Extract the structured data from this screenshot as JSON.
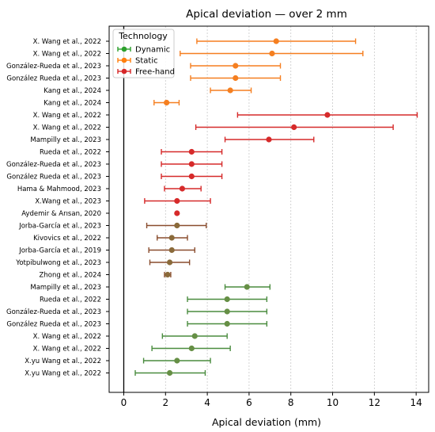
{
  "chart_data": {
    "type": "scatter",
    "title": "Apical deviation — over 2 mm",
    "xlabel": "Apical deviation (mm)",
    "ylabel": "",
    "xlim": [
      -0.7,
      14.6
    ],
    "xticks": [
      0,
      2,
      4,
      6,
      8,
      10,
      12,
      14
    ],
    "grid": "vertical dotted",
    "reference_line_x": 0,
    "legend": {
      "title": "Technology",
      "placement": "top-left",
      "entries": [
        {
          "name": "Dynamic",
          "color": "#2ca02c"
        },
        {
          "name": "Static",
          "color": "#ff7f0e"
        },
        {
          "name": "Free-hand",
          "color": "#d62728"
        }
      ]
    },
    "rows": [
      {
        "label": "X. Wang et al., 2022",
        "group": "Static",
        "mean": 7.3,
        "low": 3.5,
        "high": 11.1
      },
      {
        "label": "X. Wang et al., 2022",
        "group": "Static",
        "mean": 7.1,
        "low": 2.7,
        "high": 11.45
      },
      {
        "label": "González-Rueda et al., 2023",
        "group": "Static",
        "mean": 5.35,
        "low": 3.2,
        "high": 7.5
      },
      {
        "label": "González Rueda et al., 2023",
        "group": "Static",
        "mean": 5.35,
        "low": 3.2,
        "high": 7.5
      },
      {
        "label": "Kang et al., 2024",
        "group": "Static",
        "mean": 5.1,
        "low": 4.15,
        "high": 6.1
      },
      {
        "label": "Kang et al., 2024",
        "group": "Static",
        "mean": 2.05,
        "low": 1.45,
        "high": 2.65
      },
      {
        "label": "X. Wang et al., 2022",
        "group": "Free-hand",
        "mean": 9.75,
        "low": 5.45,
        "high": 14.05
      },
      {
        "label": "X. Wang et al., 2022",
        "group": "Free-hand",
        "mean": 8.15,
        "low": 3.45,
        "high": 12.9
      },
      {
        "label": "Mampilly et al., 2023",
        "group": "Free-hand",
        "mean": 6.95,
        "low": 4.85,
        "high": 9.1
      },
      {
        "label": "Rueda et al., 2022",
        "group": "Free-hand",
        "mean": 3.25,
        "low": 1.8,
        "high": 4.7
      },
      {
        "label": "González-Rueda et al., 2023",
        "group": "Free-hand",
        "mean": 3.25,
        "low": 1.8,
        "high": 4.7
      },
      {
        "label": "González Rueda et al., 2023",
        "group": "Free-hand",
        "mean": 3.25,
        "low": 1.8,
        "high": 4.7
      },
      {
        "label": "Hama & Mahmood, 2023",
        "group": "Free-hand",
        "mean": 2.8,
        "low": 1.95,
        "high": 3.7
      },
      {
        "label": "X.Wang et al., 2023",
        "group": "Free-hand",
        "mean": 2.55,
        "low": 1.0,
        "high": 4.15
      },
      {
        "label": "Aydemir & Arısan, 2020",
        "group": "Free-hand",
        "mean": 2.55,
        "low": 2.55,
        "high": 2.55
      },
      {
        "label": "Jorba-García et al., 2023",
        "group": "Free-hand/Dynamic",
        "mean": 2.55,
        "low": 1.1,
        "high": 3.95
      },
      {
        "label": "Kivovics et al., 2022",
        "group": "Free-hand/Dynamic",
        "mean": 2.3,
        "low": 1.6,
        "high": 3.05
      },
      {
        "label": "Jorba-García et al., 2019",
        "group": "Free-hand/Dynamic",
        "mean": 2.3,
        "low": 1.2,
        "high": 3.4
      },
      {
        "label": "Yotpibulwong et al., 2023",
        "group": "Free-hand/Dynamic",
        "mean": 2.2,
        "low": 1.25,
        "high": 3.15
      },
      {
        "label": "Zhong et al., 2024",
        "group": "Free-hand/Dynamic",
        "mean": 2.1,
        "low": 1.95,
        "high": 2.25
      },
      {
        "label": "Mampilly et al., 2023",
        "group": "Dynamic",
        "mean": 5.9,
        "low": 4.85,
        "high": 7.0
      },
      {
        "label": "Rueda et al., 2022",
        "group": "Dynamic",
        "mean": 4.95,
        "low": 3.05,
        "high": 6.85
      },
      {
        "label": "González-Rueda et al., 2023",
        "group": "Dynamic",
        "mean": 4.95,
        "low": 3.05,
        "high": 6.85
      },
      {
        "label": "González Rueda et al., 2023",
        "group": "Dynamic",
        "mean": 4.95,
        "low": 3.05,
        "high": 6.85
      },
      {
        "label": "X. Wang et al., 2022",
        "group": "Dynamic",
        "mean": 3.4,
        "low": 1.85,
        "high": 4.95
      },
      {
        "label": "X. Wang et al., 2022",
        "group": "Dynamic",
        "mean": 3.25,
        "low": 1.35,
        "high": 5.1
      },
      {
        "label": "X.yu Wang et al., 2022",
        "group": "Dynamic",
        "mean": 2.55,
        "low": 0.95,
        "high": 4.15
      },
      {
        "label": "X.yu Wang et al., 2022",
        "group": "Dynamic",
        "mean": 2.2,
        "low": 0.55,
        "high": 3.9
      }
    ]
  },
  "colors": {
    "Dynamic": "#4a8c3f",
    "Static": "#f57f20",
    "Free-hand": "#d62a2a",
    "Free-hand/Dynamic": "#8a4d2e",
    "Free-hand/Dynamic-marker": "#8a6a3a",
    "Dynamic-marker": "#668f45",
    "axis": "#000000",
    "grid": "#c8c8c8"
  }
}
